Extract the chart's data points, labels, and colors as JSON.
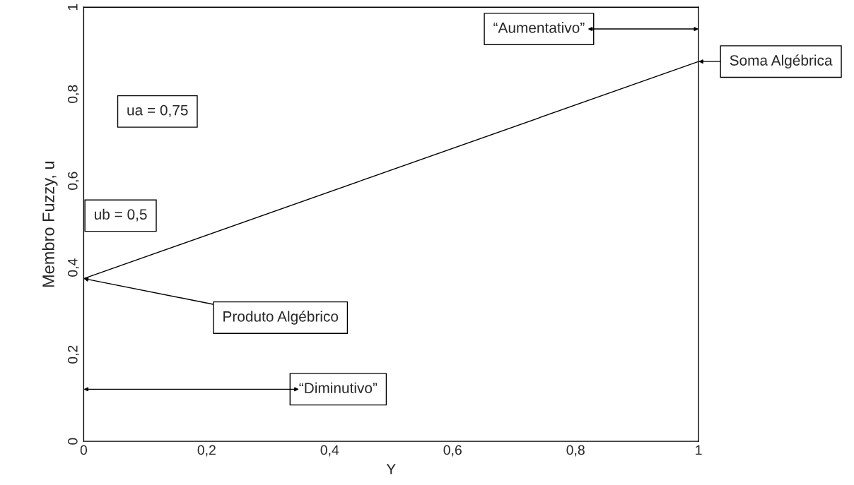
{
  "chart_data": {
    "type": "line",
    "xlabel": "Y",
    "ylabel": "Membro Fuzzy, u",
    "x": [
      0,
      1
    ],
    "series": [
      {
        "color": "#000000",
        "values": [
          0.375,
          0.875
        ]
      }
    ],
    "xlim": [
      0,
      1
    ],
    "ylim": [
      0,
      1
    ],
    "xticks": [
      0,
      {
        "value": 0.2,
        "label": "0,2"
      },
      {
        "value": 0.4,
        "label": "0,4"
      },
      {
        "value": 0.6,
        "label": "0,6"
      },
      {
        "value": 0.8,
        "label": "0,8"
      },
      1
    ],
    "yticks": [
      0,
      {
        "value": 0.2,
        "label": "0,2"
      },
      {
        "value": 0.4,
        "label": "0,4"
      },
      {
        "value": 0.6,
        "label": "0,6"
      },
      {
        "value": 0.8,
        "label": "0,8"
      },
      1
    ],
    "grid": false,
    "legend": false,
    "marker": "none",
    "line_style": "solid",
    "annotations": [
      "ua = 0,75",
      "ub = 0,5",
      {
        "text": "Produto Algébrico",
        "x": 0,
        "y": 0.375
      },
      {
        "text": "Soma Algébrica",
        "x": 1,
        "y": 0.875
      },
      "“Aumentativo”",
      "“Diminutivo”"
    ]
  }
}
